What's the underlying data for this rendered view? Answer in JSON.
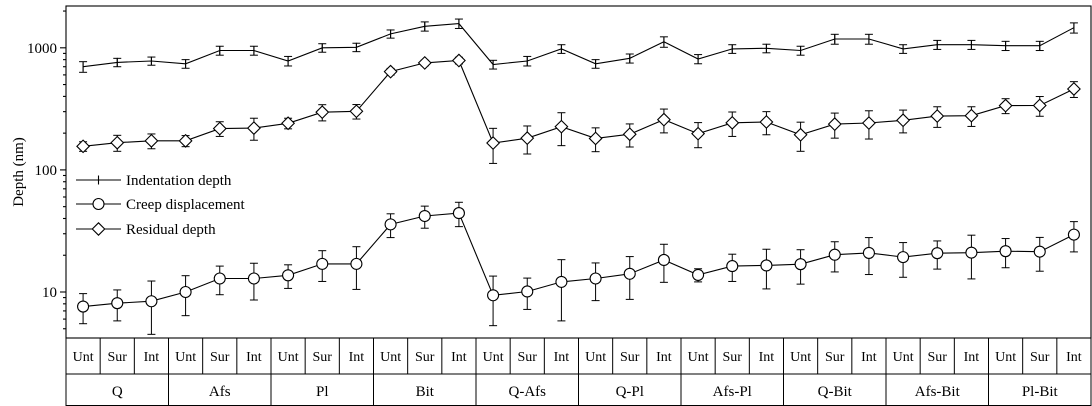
{
  "chart_data": {
    "type": "line",
    "ylabel": "Depth (nm)",
    "yscale": "log",
    "ylim": [
      4.2,
      2200
    ],
    "yticks": [
      {
        "value": 10,
        "label": "10"
      },
      {
        "value": 100,
        "label": "100"
      },
      {
        "value": 1000,
        "label": "1000"
      }
    ],
    "legend_position": "left",
    "groups": [
      "Q",
      "Afs",
      "Pl",
      "Bit",
      "Q-Afs",
      "Q-Pl",
      "Afs-Pl",
      "Q-Bit",
      "Afs-Bit",
      "Pl-Bit"
    ],
    "subcategories": [
      "Unt",
      "Sur",
      "Int"
    ],
    "series": [
      {
        "name": "Indentation depth",
        "marker": "tick",
        "values": [
          700,
          760,
          780,
          740,
          950,
          950,
          780,
          1000,
          1010,
          1300,
          1500,
          1580,
          730,
          780,
          980,
          740,
          820,
          1120,
          810,
          980,
          990,
          950,
          1180,
          1180,
          980,
          1060,
          1060,
          1040,
          1040,
          1460
        ],
        "errors": [
          70,
          60,
          60,
          60,
          80,
          80,
          70,
          80,
          80,
          100,
          130,
          140,
          60,
          70,
          80,
          60,
          70,
          110,
          70,
          80,
          80,
          80,
          110,
          110,
          80,
          90,
          90,
          90,
          90,
          140
        ]
      },
      {
        "name": "Creep displacement",
        "marker": "circle",
        "values": [
          7.6,
          8.1,
          8.4,
          10.0,
          12.9,
          12.9,
          13.7,
          17.0,
          17.0,
          35.8,
          41.9,
          44.3,
          9.4,
          10.1,
          12.1,
          12.9,
          14.1,
          18.3,
          13.8,
          16.3,
          16.5,
          16.9,
          20.2,
          20.9,
          19.3,
          20.8,
          21.0,
          21.6,
          21.4,
          29.5
        ],
        "errors": [
          2.1,
          2.3,
          3.9,
          3.6,
          3.4,
          4.3,
          3.0,
          4.8,
          6.5,
          7.9,
          8.6,
          10.0,
          4.1,
          2.9,
          6.3,
          4.4,
          5.4,
          6.3,
          1.7,
          4.1,
          5.9,
          5.3,
          5.6,
          7.0,
          6.1,
          5.4,
          8.2,
          5.8,
          6.6,
          8.2
        ]
      },
      {
        "name": "Residual depth",
        "marker": "diamond",
        "values": [
          156,
          167,
          173,
          173,
          218,
          220,
          241,
          297,
          302,
          638,
          752,
          787,
          166,
          182,
          226,
          181,
          196,
          258,
          198,
          243,
          247,
          194,
          237,
          242,
          255,
          276,
          278,
          336,
          337,
          460
        ],
        "errors": [
          14,
          25,
          24,
          18,
          30,
          45,
          24,
          45,
          41,
          40,
          40,
          50,
          53,
          47,
          68,
          40,
          42,
          57,
          46,
          55,
          53,
          52,
          55,
          63,
          54,
          53,
          51,
          47,
          62,
          68
        ]
      }
    ]
  }
}
